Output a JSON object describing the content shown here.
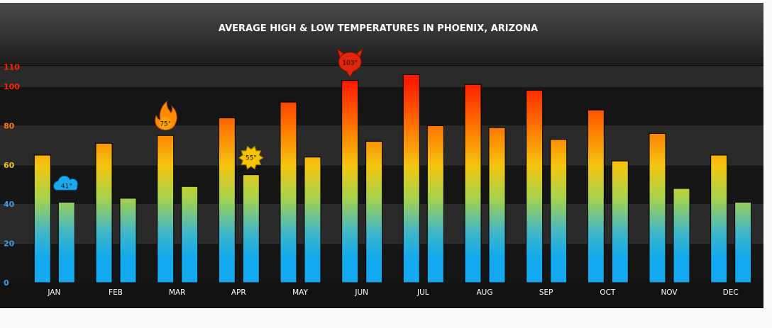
{
  "chart_data": {
    "type": "bar",
    "title": "AVERAGE HIGH & LOW TEMPERATURES IN PHOENIX, ARIZONA",
    "xlabel": "",
    "ylabel": "",
    "ylim": [
      0,
      110
    ],
    "yticks": [
      0,
      20,
      40,
      60,
      80,
      100,
      110
    ],
    "grid": true,
    "legend": "none",
    "categories": [
      "JAN",
      "FEB",
      "MAR",
      "APR",
      "MAY",
      "JUN",
      "JUL",
      "AUG",
      "SEP",
      "OCT",
      "NOV",
      "DEC"
    ],
    "series": [
      {
        "values": [
          65,
          71,
          75,
          84,
          92,
          103,
          106,
          101,
          98,
          88,
          76,
          65
        ]
      },
      {
        "values": [
          41,
          43,
          49,
          55,
          64,
          72,
          80,
          79,
          73,
          62,
          48,
          41
        ]
      }
    ],
    "annotations": [
      {
        "icon": "cloud-icon",
        "category": "JAN",
        "series": 1,
        "label": "41°"
      },
      {
        "icon": "flame-icon",
        "category": "MAR",
        "series": 0,
        "label": "75°"
      },
      {
        "icon": "sun-icon",
        "category": "APR",
        "series": 1,
        "label": "55°"
      },
      {
        "icon": "devil-icon",
        "category": "JUN",
        "series": 0,
        "label": "103°"
      }
    ],
    "colors": {
      "panel_bg": "#111111",
      "header_top": "#4a4a4a",
      "header_bottom": "#1c1c1c",
      "band_light": "#2a2a2a",
      "band_dark": "#151515",
      "tick_hot": "#ff2200",
      "tick_warm": "#ff7700",
      "tick_mild": "#f2c40f",
      "tick_cool": "#3d9be8",
      "grad_top": "#ff1a00",
      "grad_orange": "#ff7a00",
      "grad_yellow": "#f3c50e",
      "grad_green": "#a7d34a",
      "grad_teal": "#42b6c8",
      "grad_blue": "#12a9ee"
    }
  }
}
